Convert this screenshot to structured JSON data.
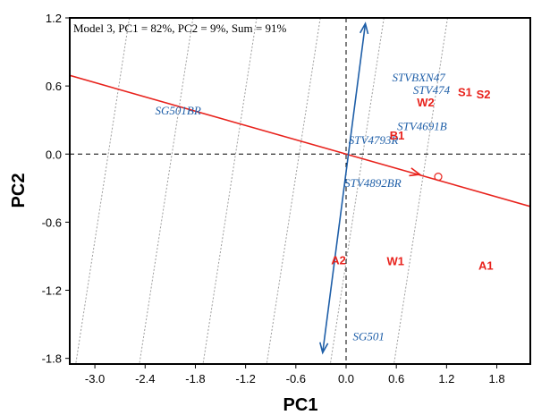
{
  "chart_data": {
    "type": "scatter",
    "title": "",
    "annotation": "Model 3, PC1 = 82%, PC2 = 9%, Sum = 91%",
    "xlabel": "PC1",
    "ylabel": "PC2",
    "xlim": [
      -3.3,
      2.2
    ],
    "ylim": [
      -1.85,
      1.2
    ],
    "x_ticks": [
      {
        "value": -3.0,
        "label": "-3.0"
      },
      {
        "value": -2.4,
        "label": "-2.4"
      },
      {
        "value": -1.8,
        "label": "-1.8"
      },
      {
        "value": -1.2,
        "label": "-1.2"
      },
      {
        "value": -0.6,
        "label": "-0.6"
      },
      {
        "value": 0.0,
        "label": "0.0"
      },
      {
        "value": 0.6,
        "label": "0.6"
      },
      {
        "value": 1.2,
        "label": "1.2"
      },
      {
        "value": 1.8,
        "label": "1.8"
      }
    ],
    "y_ticks": [
      {
        "value": 1.2,
        "label": "1.2"
      },
      {
        "value": 0.6,
        "label": "0.6"
      },
      {
        "value": 0.0,
        "label": "0.0"
      },
      {
        "value": -0.6,
        "label": "-0.6"
      },
      {
        "value": -1.2,
        "label": "-1.2"
      },
      {
        "value": -1.8,
        "label": "-1.8"
      }
    ],
    "testers": [
      {
        "label": "SG501BR",
        "x": -2.28,
        "y": 0.35
      },
      {
        "label": "STVBXN47",
        "x": 0.55,
        "y": 0.64
      },
      {
        "label": "STV474",
        "x": 0.8,
        "y": 0.53
      },
      {
        "label": "STV4691B",
        "x": 0.61,
        "y": 0.21
      },
      {
        "label": "STV4793R",
        "x": 0.03,
        "y": 0.09
      },
      {
        "label": "STV4892BR",
        "x": -0.02,
        "y": -0.29
      },
      {
        "label": "SG501",
        "x": 0.08,
        "y": -1.64
      }
    ],
    "entries": [
      {
        "label": "S1",
        "x": 1.42,
        "y": 0.51
      },
      {
        "label": "S2",
        "x": 1.64,
        "y": 0.49
      },
      {
        "label": "W2",
        "x": 0.95,
        "y": 0.42
      },
      {
        "label": "B1",
        "x": 0.61,
        "y": 0.13
      },
      {
        "label": "A2",
        "x": -0.09,
        "y": -0.97
      },
      {
        "label": "W1",
        "x": 0.59,
        "y": -0.98
      },
      {
        "label": "A1",
        "x": 1.67,
        "y": -1.02
      }
    ],
    "average_environment_axis": {
      "slope": -0.21,
      "arrow_to": [
        0.88,
        -0.18
      ],
      "circle": [
        1.1,
        -0.2
      ]
    },
    "ata_line": {
      "from": [
        -0.28,
        -1.75
      ],
      "to": [
        0.23,
        1.15
      ]
    },
    "colors": {
      "testers": "#1f5fa8",
      "entries": "#e8221c",
      "average_axis": "#e8221c",
      "ata_arrow": "#1f5fa8",
      "guide_lines": "#9e9e9e"
    },
    "grid": false,
    "zero_lines": "dashed"
  }
}
